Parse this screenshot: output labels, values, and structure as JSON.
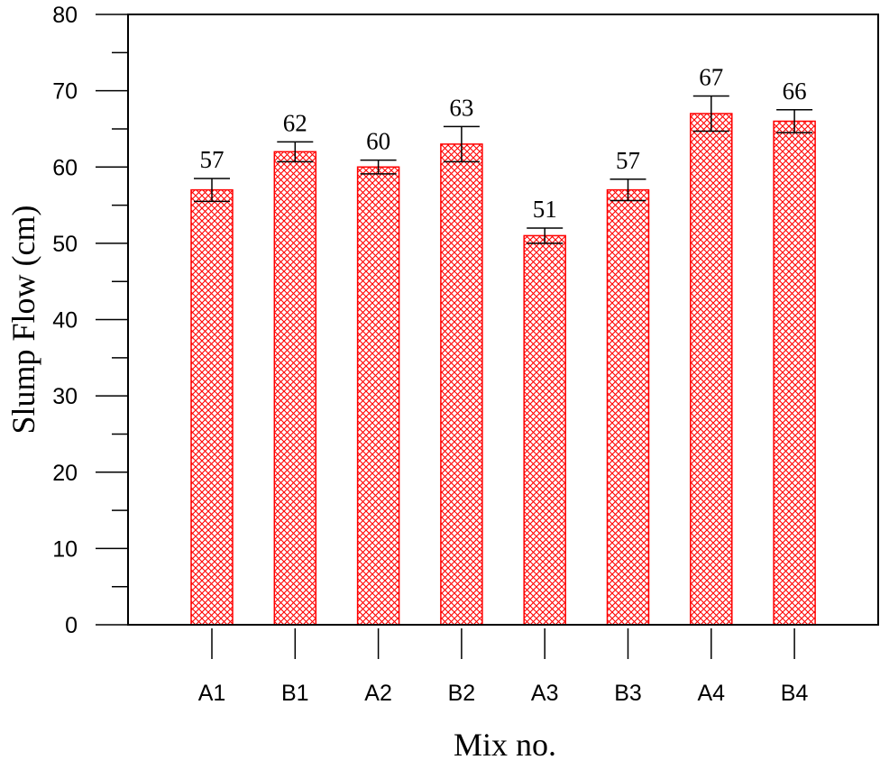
{
  "chart_data": {
    "type": "bar",
    "title": "",
    "xlabel": "Mix no.",
    "ylabel": "Slump Flow (cm)",
    "categories": [
      "A1",
      "B1",
      "A2",
      "B2",
      "A3",
      "B3",
      "A4",
      "B4"
    ],
    "values": [
      57,
      62,
      60,
      63,
      51,
      57,
      67,
      66
    ],
    "value_labels": [
      "57",
      "62",
      "60",
      "63",
      "51",
      "57",
      "67",
      "66"
    ],
    "error_low": [
      1.5,
      1.3,
      0.9,
      2.3,
      1.0,
      1.4,
      2.3,
      1.5
    ],
    "error_high": [
      1.5,
      1.3,
      0.9,
      2.3,
      1.0,
      1.4,
      2.3,
      1.5
    ],
    "ylim": [
      0,
      80
    ],
    "yticks": [
      0,
      10,
      20,
      30,
      40,
      50,
      60,
      70,
      80
    ],
    "ytick_labels": [
      "0",
      "10",
      "20",
      "30",
      "40",
      "50",
      "60",
      "70",
      "80"
    ],
    "grid": false,
    "legend": "none",
    "bar_color": "#ff0000",
    "bar_pattern": "crosshatch"
  }
}
